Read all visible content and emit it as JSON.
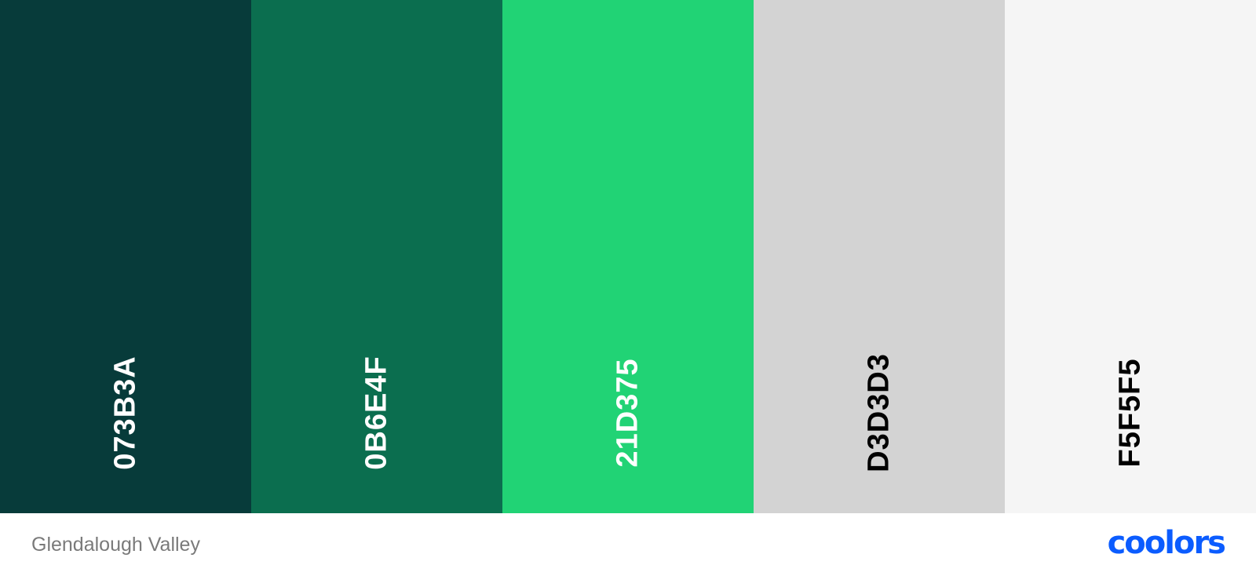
{
  "palette": {
    "swatches": [
      {
        "hex": "073B3A",
        "color": "#073B3A",
        "text_color": "#FFFFFF"
      },
      {
        "hex": "0B6E4F",
        "color": "#0B6E4F",
        "text_color": "#FFFFFF"
      },
      {
        "hex": "21D375",
        "color": "#21D375",
        "text_color": "#FFFFFF"
      },
      {
        "hex": "D3D3D3",
        "color": "#D3D3D3",
        "text_color": "#000000"
      },
      {
        "hex": "F5F5F5",
        "color": "#F5F5F5",
        "text_color": "#000000"
      }
    ]
  },
  "footer": {
    "palette_name": "Glendalough Valley",
    "brand": "coolors",
    "brand_color": "#0B5CFF"
  }
}
